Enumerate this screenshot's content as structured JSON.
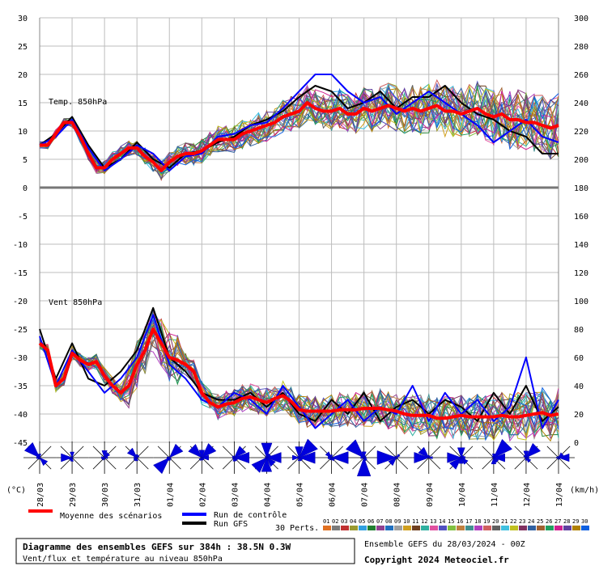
{
  "chart_data": {
    "type": "line",
    "run_label": "Ensemble GEFS du 28/03/2024 - 00Z",
    "copyright": "Copyright 2024 Meteociel.fr",
    "x_dates": [
      "28/03",
      "29/03",
      "30/03",
      "31/03",
      "01/04",
      "02/04",
      "03/04",
      "04/04",
      "05/04",
      "06/04",
      "07/04",
      "08/04",
      "09/04",
      "10/04",
      "11/04",
      "12/04",
      "13/04"
    ],
    "left_axis_unit": "(°C)",
    "right_axis_unit": "(km/h)",
    "temp_panel": {
      "label": "Temp. 850hPa",
      "y_ticks": [
        0,
        5,
        10,
        15,
        20,
        25,
        30
      ],
      "y_range": [
        0,
        30
      ],
      "mean": [
        [
          0,
          7.5
        ],
        [
          0.25,
          7.5
        ],
        [
          0.5,
          9.5
        ],
        [
          0.75,
          11.5
        ],
        [
          1,
          11.5
        ],
        [
          1.25,
          9
        ],
        [
          1.5,
          6
        ],
        [
          1.75,
          3.5
        ],
        [
          2,
          3.5
        ],
        [
          2.25,
          5
        ],
        [
          2.5,
          6
        ],
        [
          2.75,
          7
        ],
        [
          3,
          7
        ],
        [
          3.25,
          5.5
        ],
        [
          3.5,
          4.5
        ],
        [
          3.75,
          3
        ],
        [
          4,
          4.5
        ],
        [
          4.25,
          5.5
        ],
        [
          4.5,
          6
        ],
        [
          4.75,
          6
        ],
        [
          5,
          6.5
        ],
        [
          5.25,
          7.5
        ],
        [
          5.5,
          8.5
        ],
        [
          5.75,
          8.5
        ],
        [
          6,
          8.5
        ],
        [
          6.25,
          9.5
        ],
        [
          6.5,
          10
        ],
        [
          6.75,
          10.5
        ],
        [
          7,
          11
        ],
        [
          7.25,
          11.5
        ],
        [
          7.5,
          12.5
        ],
        [
          7.75,
          13
        ],
        [
          8,
          13.5
        ],
        [
          8.25,
          15
        ],
        [
          8.5,
          14
        ],
        [
          8.75,
          13.5
        ],
        [
          9,
          13.5
        ],
        [
          9.25,
          14
        ],
        [
          9.5,
          13
        ],
        [
          9.75,
          13
        ],
        [
          10,
          14
        ],
        [
          10.25,
          13.5
        ],
        [
          10.5,
          14
        ],
        [
          10.75,
          14.5
        ],
        [
          11,
          14
        ],
        [
          11.25,
          13.5
        ],
        [
          11.5,
          14
        ],
        [
          11.75,
          13.5
        ],
        [
          12,
          14
        ],
        [
          12.25,
          14.5
        ],
        [
          12.5,
          13.5
        ],
        [
          12.75,
          13.5
        ],
        [
          13,
          13
        ],
        [
          13.25,
          13.5
        ],
        [
          13.5,
          14
        ],
        [
          13.75,
          13
        ],
        [
          14,
          12.5
        ],
        [
          14.25,
          13
        ],
        [
          14.5,
          12
        ],
        [
          14.75,
          12
        ],
        [
          15,
          11.5
        ],
        [
          15.25,
          11.5
        ],
        [
          15.5,
          11
        ],
        [
          15.75,
          10.5
        ],
        [
          16,
          11
        ]
      ],
      "control": [
        [
          0,
          7.5
        ],
        [
          0.5,
          9
        ],
        [
          1,
          12
        ],
        [
          1.5,
          7
        ],
        [
          2,
          3
        ],
        [
          2.5,
          5
        ],
        [
          3,
          7.5
        ],
        [
          3.5,
          6
        ],
        [
          4,
          3
        ],
        [
          4.5,
          5.5
        ],
        [
          5,
          6
        ],
        [
          5.5,
          9
        ],
        [
          6,
          9.5
        ],
        [
          6.5,
          11
        ],
        [
          7,
          11.5
        ],
        [
          7.5,
          14
        ],
        [
          8,
          17
        ],
        [
          8.5,
          20
        ],
        [
          9,
          20
        ],
        [
          9.5,
          17
        ],
        [
          10,
          15
        ],
        [
          10.5,
          16
        ],
        [
          11,
          13
        ],
        [
          11.5,
          15
        ],
        [
          12,
          17
        ],
        [
          12.5,
          15
        ],
        [
          13,
          13
        ],
        [
          13.5,
          11
        ],
        [
          14,
          8
        ],
        [
          14.5,
          10
        ],
        [
          15,
          12
        ],
        [
          15.5,
          9
        ],
        [
          16,
          8
        ]
      ],
      "gfs": [
        [
          0,
          7.5
        ],
        [
          0.5,
          9.5
        ],
        [
          1,
          12.5
        ],
        [
          1.5,
          7.5
        ],
        [
          2,
          3.5
        ],
        [
          2.5,
          5
        ],
        [
          3,
          8
        ],
        [
          3.5,
          5
        ],
        [
          4,
          3.5
        ],
        [
          4.5,
          6
        ],
        [
          5,
          6.5
        ],
        [
          5.5,
          8
        ],
        [
          6,
          9
        ],
        [
          6.5,
          11
        ],
        [
          7,
          12
        ],
        [
          7.5,
          13.5
        ],
        [
          8,
          16
        ],
        [
          8.5,
          18
        ],
        [
          9,
          17
        ],
        [
          9.5,
          14
        ],
        [
          10,
          15
        ],
        [
          10.5,
          17
        ],
        [
          11,
          14
        ],
        [
          11.5,
          16
        ],
        [
          12,
          16
        ],
        [
          12.5,
          18
        ],
        [
          13,
          15
        ],
        [
          13.5,
          13
        ],
        [
          14,
          12
        ],
        [
          14.5,
          10
        ],
        [
          15,
          9
        ],
        [
          15.5,
          6
        ],
        [
          16,
          6
        ]
      ]
    },
    "wind_panel": {
      "label": "Vent 850hPa",
      "y_ticks_left": [
        -5,
        -10,
        -15,
        -20,
        -25,
        -30,
        -35,
        -40,
        -45
      ],
      "y_ticks_right": [
        0,
        20,
        40,
        60,
        80,
        100,
        120,
        140,
        160,
        180,
        200,
        220,
        240,
        260,
        280,
        300
      ],
      "y_range_kmh": [
        0,
        180
      ],
      "mean": [
        [
          0,
          70
        ],
        [
          0.25,
          65
        ],
        [
          0.5,
          40
        ],
        [
          0.75,
          45
        ],
        [
          1,
          63
        ],
        [
          1.25,
          58
        ],
        [
          1.5,
          55
        ],
        [
          1.75,
          57
        ],
        [
          2,
          47
        ],
        [
          2.25,
          40
        ],
        [
          2.5,
          35
        ],
        [
          2.75,
          40
        ],
        [
          3,
          55
        ],
        [
          3.25,
          65
        ],
        [
          3.5,
          80
        ],
        [
          3.75,
          70
        ],
        [
          4,
          60
        ],
        [
          4.25,
          58
        ],
        [
          4.5,
          55
        ],
        [
          4.75,
          50
        ],
        [
          5,
          35
        ],
        [
          5.25,
          28
        ],
        [
          5.5,
          25
        ],
        [
          5.75,
          27
        ],
        [
          6,
          28
        ],
        [
          6.25,
          31
        ],
        [
          6.5,
          32
        ],
        [
          6.75,
          30
        ],
        [
          7,
          28
        ],
        [
          7.25,
          31
        ],
        [
          7.5,
          33
        ],
        [
          7.75,
          29
        ],
        [
          8,
          23
        ],
        [
          8.25,
          22
        ],
        [
          8.5,
          22
        ],
        [
          8.75,
          22
        ],
        [
          9,
          22
        ],
        [
          9.25,
          23
        ],
        [
          9.5,
          23
        ],
        [
          9.75,
          23
        ],
        [
          10,
          24
        ],
        [
          10.25,
          24
        ],
        [
          10.5,
          24
        ],
        [
          10.75,
          23
        ],
        [
          11,
          22
        ],
        [
          11.25,
          20
        ],
        [
          11.5,
          19
        ],
        [
          11.75,
          19
        ],
        [
          12,
          19
        ],
        [
          12.25,
          17
        ],
        [
          12.5,
          17
        ],
        [
          12.75,
          18
        ],
        [
          13,
          19
        ],
        [
          13.25,
          18
        ],
        [
          13.5,
          18
        ],
        [
          13.75,
          18
        ],
        [
          14,
          18
        ],
        [
          14.25,
          19
        ],
        [
          14.5,
          18
        ],
        [
          14.75,
          18
        ],
        [
          15,
          19
        ],
        [
          15.25,
          20
        ],
        [
          15.5,
          21
        ],
        [
          15.75,
          19
        ],
        [
          16,
          20
        ]
      ],
      "control": [
        [
          0,
          75
        ],
        [
          0.5,
          40
        ],
        [
          1,
          65
        ],
        [
          1.5,
          50
        ],
        [
          2,
          35
        ],
        [
          2.5,
          45
        ],
        [
          3,
          60
        ],
        [
          3.5,
          90
        ],
        [
          4,
          55
        ],
        [
          4.5,
          45
        ],
        [
          5,
          30
        ],
        [
          5.5,
          25
        ],
        [
          6,
          35
        ],
        [
          6.5,
          30
        ],
        [
          7,
          20
        ],
        [
          7.5,
          40
        ],
        [
          8,
          25
        ],
        [
          8.5,
          10
        ],
        [
          9,
          20
        ],
        [
          9.5,
          30
        ],
        [
          10,
          15
        ],
        [
          10.5,
          25
        ],
        [
          11,
          20
        ],
        [
          11.5,
          40
        ],
        [
          12,
          15
        ],
        [
          12.5,
          35
        ],
        [
          13,
          20
        ],
        [
          13.5,
          30
        ],
        [
          14,
          15
        ],
        [
          14.5,
          25
        ],
        [
          15,
          60
        ],
        [
          15.5,
          10
        ],
        [
          16,
          30
        ]
      ],
      "gfs": [
        [
          0,
          80
        ],
        [
          0.5,
          45
        ],
        [
          1,
          70
        ],
        [
          1.5,
          45
        ],
        [
          2,
          40
        ],
        [
          2.5,
          50
        ],
        [
          3,
          65
        ],
        [
          3.5,
          95
        ],
        [
          4,
          60
        ],
        [
          4.5,
          50
        ],
        [
          5,
          35
        ],
        [
          5.5,
          30
        ],
        [
          6,
          30
        ],
        [
          6.5,
          35
        ],
        [
          7,
          25
        ],
        [
          7.5,
          35
        ],
        [
          8,
          20
        ],
        [
          8.5,
          15
        ],
        [
          9,
          30
        ],
        [
          9.5,
          20
        ],
        [
          10,
          35
        ],
        [
          10.5,
          15
        ],
        [
          11,
          25
        ],
        [
          11.5,
          30
        ],
        [
          12,
          20
        ],
        [
          12.5,
          30
        ],
        [
          13,
          25
        ],
        [
          13.5,
          15
        ],
        [
          14,
          35
        ],
        [
          14.5,
          20
        ],
        [
          15,
          40
        ],
        [
          15.5,
          15
        ],
        [
          16,
          25
        ]
      ]
    },
    "perturbations": {
      "count_label": "30 Perts.",
      "ids": [
        "01",
        "02",
        "03",
        "04",
        "05",
        "06",
        "07",
        "08",
        "09",
        "10",
        "11",
        "12",
        "13",
        "14",
        "15",
        "16",
        "17",
        "18",
        "19",
        "20",
        "21",
        "22",
        "23",
        "24",
        "25",
        "26",
        "27",
        "28",
        "29",
        "30"
      ],
      "colors": [
        "#e07020",
        "#7a7a7a",
        "#c03030",
        "#9a9a30",
        "#30a0e0",
        "#208030",
        "#904090",
        "#2070c0",
        "#a0a0a0",
        "#d0a020",
        "#704020",
        "#30b0a0",
        "#e050a0",
        "#5050c0",
        "#80c040",
        "#c08040",
        "#409090",
        "#b040c0",
        "#d06060",
        "#606060",
        "#40c0e0",
        "#c0c020",
        "#803060",
        "#3060a0",
        "#a06030",
        "#20a060",
        "#d02090",
        "#6040a0",
        "#b08000",
        "#1060e0"
      ]
    },
    "legend": {
      "mean": "Moyenne des scénarios",
      "control": "Run de contrôle",
      "gfs": "Run GFS"
    },
    "colors": {
      "mean": "#ff0000",
      "control": "#0000ff",
      "gfs": "#000000"
    },
    "footer": {
      "title": "Diagramme des ensembles GEFS sur 384h : 38.5N 0.3W",
      "subtitle": "Vent/flux et température au niveau 850hPa"
    }
  }
}
